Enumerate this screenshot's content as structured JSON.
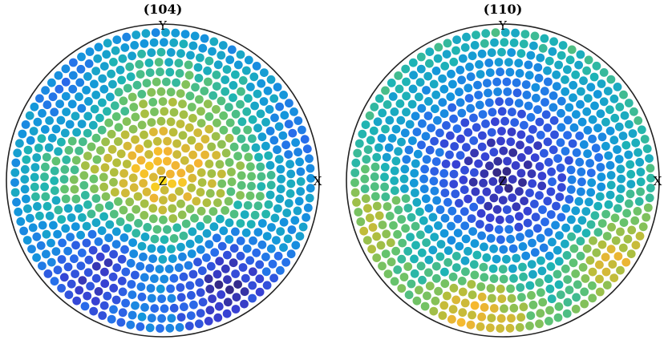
{
  "chart_data": [
    {
      "type": "pole_figure_scatter",
      "title": "(104)",
      "axis_labels": {
        "x": "X",
        "y": "Y",
        "z": "Z"
      },
      "projection": "upper hemisphere, equal-area",
      "grid": false,
      "colormap": "parula",
      "color_value_range": [
        0,
        1
      ],
      "center_value": 0.92,
      "edge_value": 0.35,
      "lobes": [
        {
          "azimuth_deg": -60,
          "polar_frac": 0.78,
          "value": 0.05,
          "spread": 0.28
        },
        {
          "azimuth_deg": -125,
          "polar_frac": 0.72,
          "value": 0.1,
          "spread": 0.25
        },
        {
          "azimuth_deg": 135,
          "polar_frac": 0.85,
          "value": 0.3,
          "spread": 0.2
        },
        {
          "azimuth_deg": 20,
          "polar_frac": 0.9,
          "value": 0.3,
          "spread": 0.18
        }
      ],
      "seed": 7
    },
    {
      "type": "pole_figure_scatter",
      "title": "(110)",
      "axis_labels": {
        "x": "X",
        "y": "Y",
        "z": "Z"
      },
      "projection": "upper hemisphere, equal-area",
      "grid": false,
      "colormap": "parula",
      "color_value_range": [
        0,
        1
      ],
      "center_value": 0.03,
      "edge_value": 0.55,
      "lobes": [
        {
          "azimuth_deg": -100,
          "polar_frac": 0.95,
          "value": 0.85,
          "spread": 0.3
        },
        {
          "azimuth_deg": -35,
          "polar_frac": 0.92,
          "value": 0.8,
          "spread": 0.25
        },
        {
          "azimuth_deg": 200,
          "polar_frac": 0.9,
          "value": 0.72,
          "spread": 0.25
        }
      ],
      "seed": 11
    }
  ]
}
